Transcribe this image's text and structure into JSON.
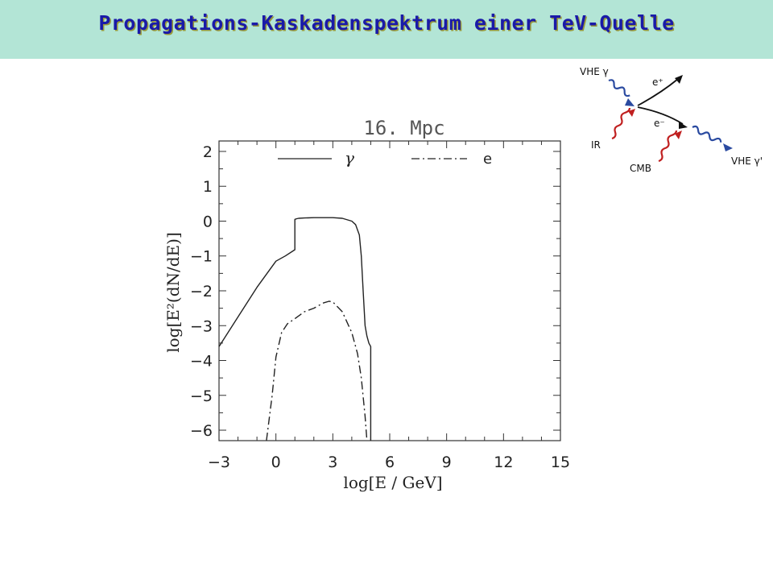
{
  "slide": {
    "title": "Propagations-Kaskadenspektrum einer TeV-Quelle"
  },
  "diagram": {
    "vhe_in": "VHE γ",
    "e_plus": "e⁺",
    "e_minus": "e⁻",
    "ir": "IR",
    "cmb": "CMB",
    "vhe_out": "VHE γ'"
  },
  "colors": {
    "title_bg": "#b3e5d6",
    "title_text": "#1a1aa8",
    "photon_blue": "#2a4aa0",
    "photon_red": "#c02020"
  },
  "chart_data": {
    "type": "line",
    "title": "16. Mpc",
    "xlabel": "log[E / GeV]",
    "ylabel": "log[E²(dN/dE)]",
    "xlim": [
      -3,
      15
    ],
    "ylim": [
      -6.3,
      2.3
    ],
    "xticks": [
      -3,
      0,
      3,
      6,
      9,
      12,
      15
    ],
    "yticks": [
      2,
      1,
      0,
      -1,
      -2,
      -3,
      -4,
      -5,
      -6
    ],
    "ytick_labels": [
      "2",
      "1",
      "0",
      "−1",
      "−2",
      "−3",
      "−4",
      "−5",
      "−6"
    ],
    "legend_position": "top",
    "series": [
      {
        "name": "γ",
        "style": "solid",
        "x": [
          -3,
          -2,
          -1,
          0,
          0.5,
          1.0,
          1.0,
          1.1,
          1.2,
          1.5,
          2.0,
          2.5,
          3.0,
          3.5,
          4.0,
          4.2,
          4.4,
          4.5,
          4.6,
          4.7,
          4.8,
          4.85,
          4.9,
          5.0,
          5.0
        ],
        "y": [
          -3.6,
          -2.75,
          -1.9,
          -1.15,
          -1.0,
          -0.82,
          0.05,
          0.07,
          0.08,
          0.09,
          0.1,
          0.1,
          0.1,
          0.08,
          0.0,
          -0.1,
          -0.4,
          -1.0,
          -2.0,
          -3.0,
          -3.3,
          -3.4,
          -3.5,
          -3.6,
          -6.3
        ]
      },
      {
        "name": "e",
        "style": "dashdot",
        "x": [
          -0.5,
          -0.2,
          0,
          0.3,
          0.6,
          1.0,
          1.5,
          2.0,
          2.5,
          2.8,
          3.0,
          3.5,
          4.0,
          4.3,
          4.5,
          4.7,
          4.8
        ],
        "y": [
          -6.3,
          -5.0,
          -3.9,
          -3.2,
          -2.95,
          -2.8,
          -2.6,
          -2.5,
          -2.35,
          -2.3,
          -2.32,
          -2.6,
          -3.2,
          -3.8,
          -4.5,
          -5.6,
          -6.3
        ]
      }
    ]
  }
}
